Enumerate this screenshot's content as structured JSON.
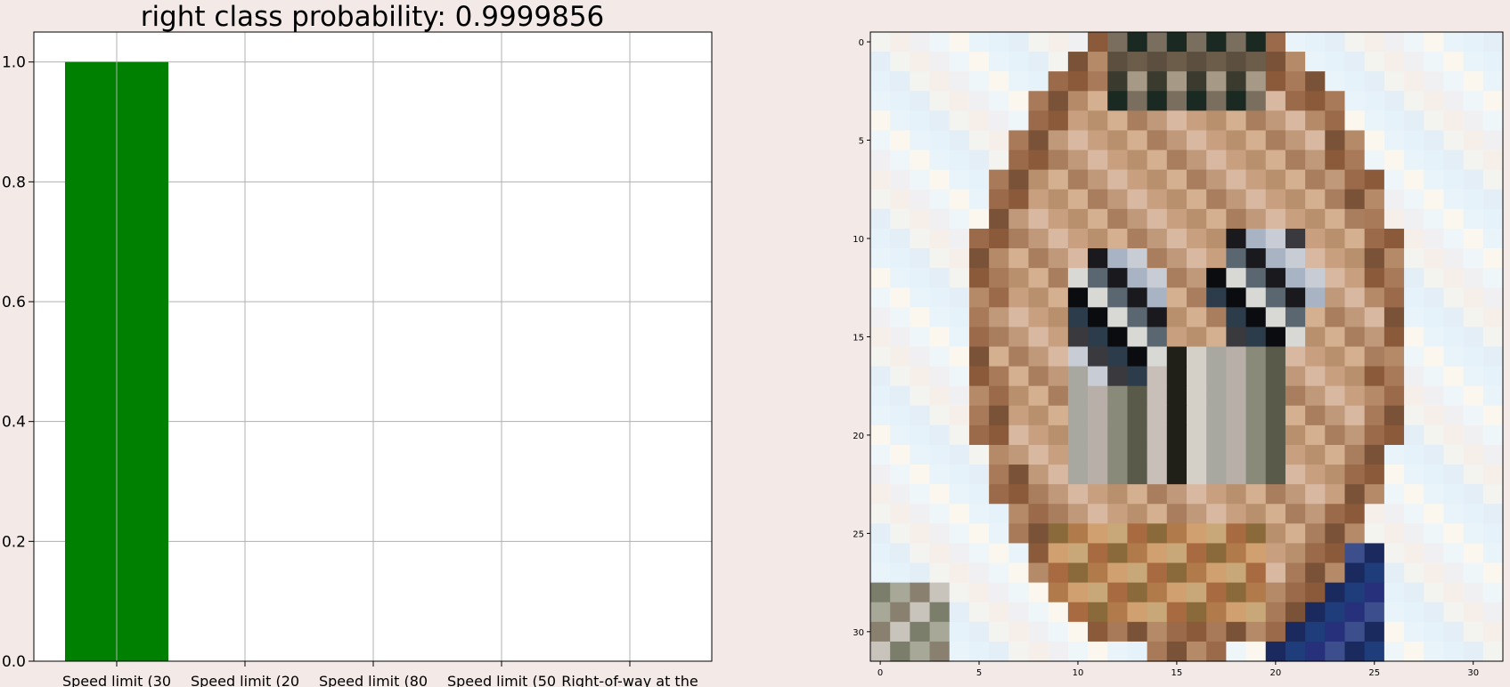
{
  "colors": {
    "bar": "#008000",
    "background": "#f3e9e7",
    "plot_background": "#ffffff",
    "grid": "#b0b0b0"
  },
  "chart_data": [
    {
      "type": "bar",
      "title": "right class probability: 0.9999856",
      "categories": [
        "Speed limit (30",
        "Speed limit (20",
        "Speed limit (80",
        "Speed limit (50",
        "Right-of-way at the"
      ],
      "values": [
        0.9999856,
        0.0,
        0.0,
        0.0,
        0.0
      ],
      "ylim": [
        0,
        1.05
      ],
      "yticks": [
        "0.0",
        "0.2",
        "0.4",
        "0.6",
        "0.8",
        "1.0"
      ],
      "grid": true
    },
    {
      "type": "heatmap",
      "description_of_content": "32x32 pixel image of a yellow-brown animal face",
      "xticks": [
        "0",
        "5",
        "10",
        "15",
        "20",
        "25",
        "30"
      ],
      "yticks": [
        "0",
        "5",
        "10",
        "15",
        "20",
        "25",
        "30"
      ],
      "size": [
        32,
        32
      ]
    }
  ]
}
